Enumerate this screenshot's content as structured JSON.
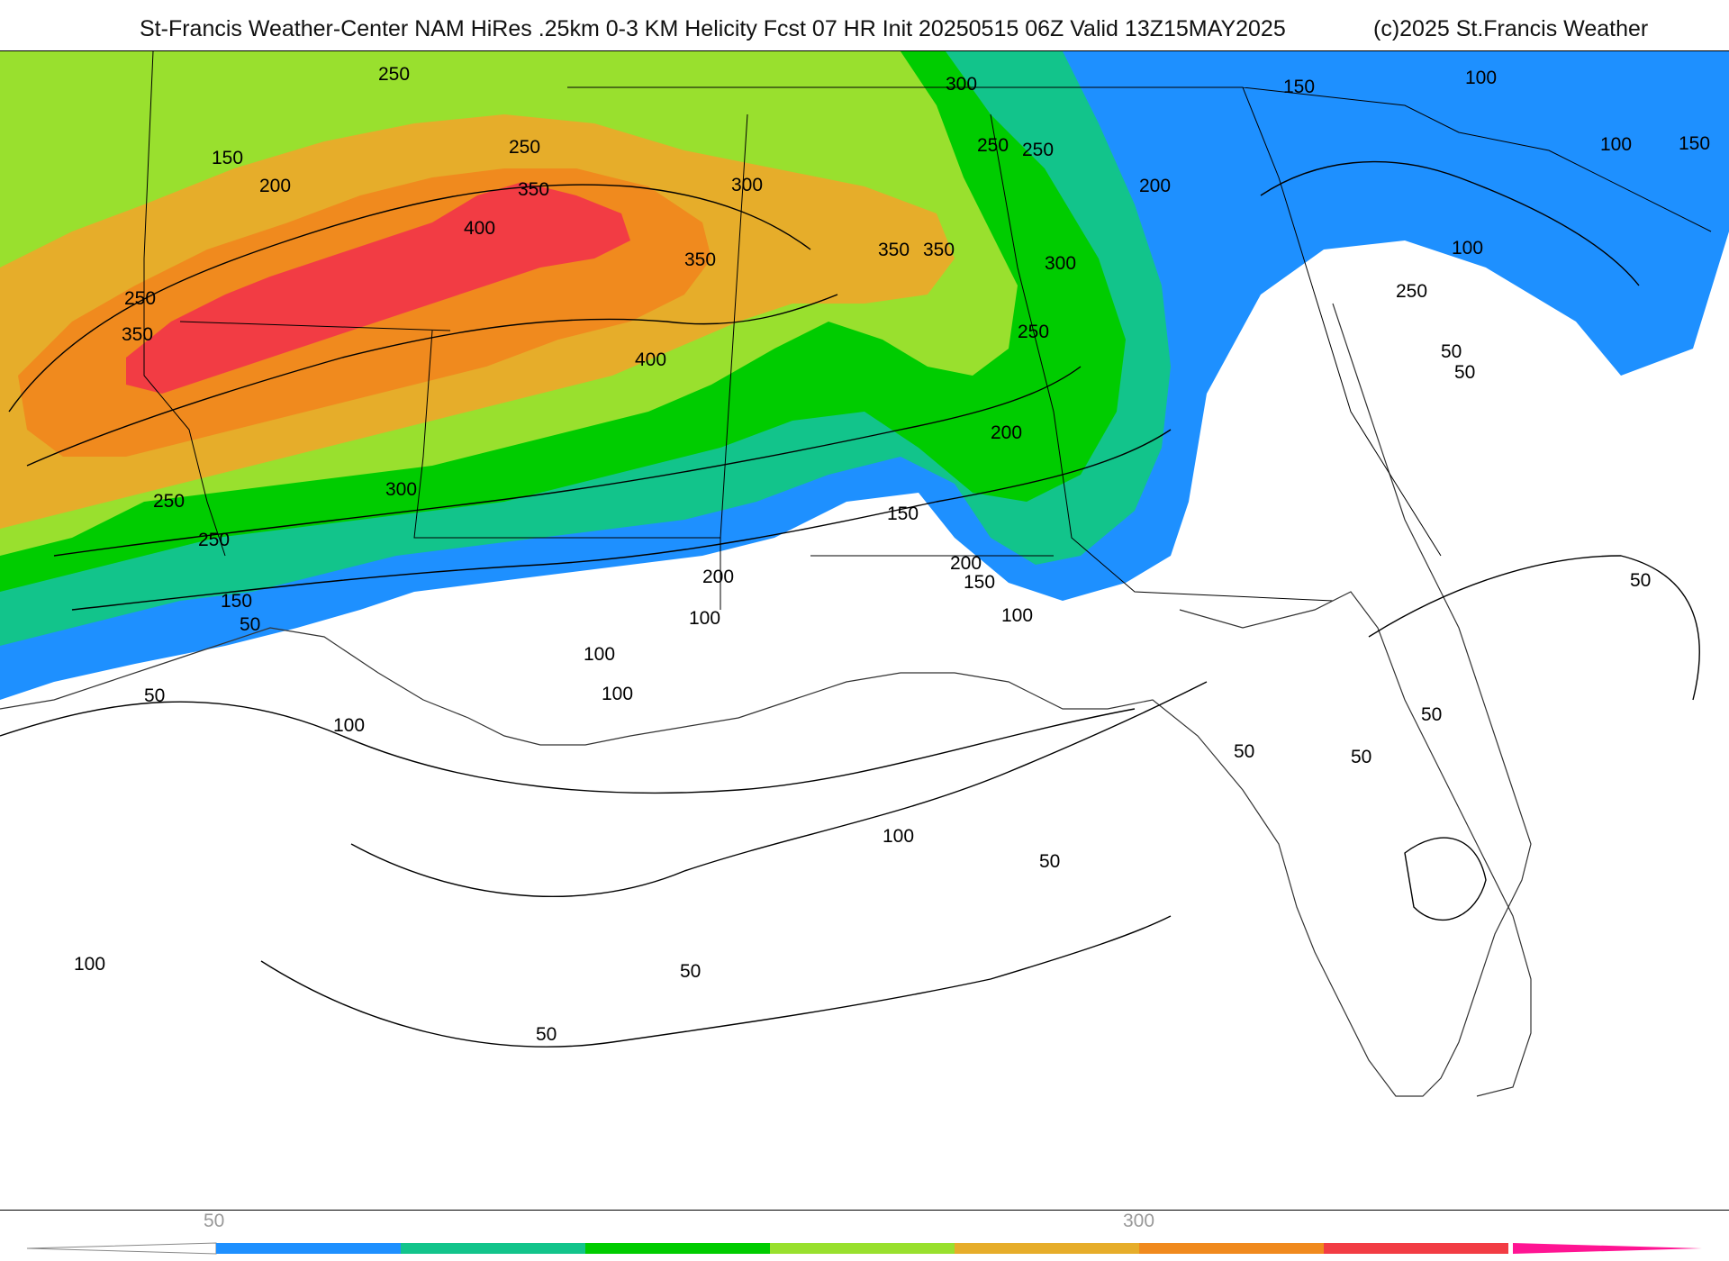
{
  "header": {
    "title": "St-Francis Weather-Center NAM HiRes .25km 0-3 KM Helicity Fcst 07 HR Init 20250515 06Z  Valid 13Z15MAY2025",
    "copyright": "(c)2025 St.Francis Weather"
  },
  "map": {
    "field": "0-3 KM Helicity",
    "contour_labels": [
      "250",
      "250",
      "150",
      "200",
      "250",
      "350",
      "400",
      "300",
      "350",
      "300",
      "250",
      "350",
      "350",
      "250",
      "200",
      "150",
      "100",
      "150",
      "250",
      "200",
      "300",
      "100",
      "100",
      "250",
      "50",
      "350",
      "50",
      "250",
      "300",
      "400",
      "150",
      "250",
      "200",
      "200",
      "150",
      "150",
      "100",
      "50",
      "100",
      "100",
      "50",
      "50",
      "100",
      "50",
      "100",
      "100",
      "50",
      "50",
      "50",
      "50",
      "100",
      "50"
    ]
  },
  "legend": {
    "tick_labels": [
      "50",
      "300"
    ],
    "colors": [
      "#1e90ff",
      "#12c48b",
      "#00cc00",
      "#99e02e",
      "#e6ad2a",
      "#f08a1e",
      "#f23c44",
      "#ff1493"
    ]
  }
}
